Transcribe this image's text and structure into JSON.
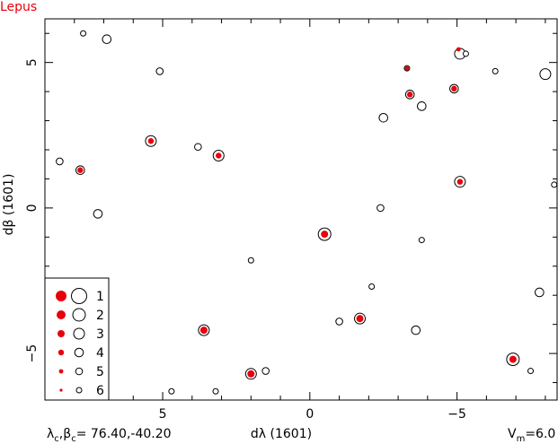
{
  "chart_data": {
    "type": "scatter",
    "title": "Lepus",
    "xlabel": "dλ (1601)",
    "ylabel": "dβ (1601)",
    "xlim": [
      9.0,
      -8.4
    ],
    "ylim": [
      -6.6,
      6.5
    ],
    "x_ticks": [
      5,
      0,
      -5
    ],
    "x_tick_labels": [
      "5",
      "0",
      "−5"
    ],
    "y_ticks": [
      5,
      0,
      -5
    ],
    "y_tick_labels": [
      "5",
      "0",
      "−5"
    ],
    "center_label": "λc,βc= 76.40,-40.20",
    "center_parts": {
      "lambda": "λ",
      "beta": "β",
      "sub": "c",
      "eq": "= ",
      "value": "76.40,-40.20",
      "comma": ","
    },
    "vm_label": "Vm=6.0",
    "vm_parts": {
      "main": "V",
      "sub": "m",
      "value": "=6.0"
    },
    "colors": {
      "filled": "#e8000b",
      "outline": "#000000",
      "title": "#e8000b"
    },
    "legend": {
      "placement": "bottom-left",
      "entries": [
        {
          "label": "1",
          "mag": 1
        },
        {
          "label": "2",
          "mag": 2
        },
        {
          "label": "3",
          "mag": 3
        },
        {
          "label": "4",
          "mag": 4
        },
        {
          "label": "5",
          "mag": 5
        },
        {
          "label": "6",
          "mag": 6
        }
      ]
    },
    "series": [
      {
        "kind": "catalog-outline",
        "points": [
          {
            "x": 7.7,
            "y": 6.0,
            "mag": 6
          },
          {
            "x": 6.9,
            "y": 5.8,
            "mag": 4
          },
          {
            "x": 5.1,
            "y": 4.7,
            "mag": 5
          },
          {
            "x": 8.5,
            "y": 1.6,
            "mag": 5
          },
          {
            "x": 7.2,
            "y": -0.2,
            "mag": 4
          },
          {
            "x": 5.4,
            "y": 2.3,
            "mag": 3
          },
          {
            "x": 3.8,
            "y": 2.1,
            "mag": 5
          },
          {
            "x": 3.1,
            "y": 1.8,
            "mag": 3
          },
          {
            "x": 7.8,
            "y": 1.3,
            "mag": 4
          },
          {
            "x": 3.6,
            "y": -4.2,
            "mag": 3
          },
          {
            "x": 2.0,
            "y": -1.8,
            "mag": 6
          },
          {
            "x": 2.0,
            "y": -5.7,
            "mag": 3
          },
          {
            "x": 1.5,
            "y": -5.6,
            "mag": 5
          },
          {
            "x": 4.7,
            "y": -6.3,
            "mag": 6
          },
          {
            "x": 3.2,
            "y": -6.3,
            "mag": 6
          },
          {
            "x": -0.5,
            "y": -0.9,
            "mag": 2
          },
          {
            "x": -1.0,
            "y": -3.9,
            "mag": 5
          },
          {
            "x": -1.7,
            "y": -3.8,
            "mag": 3
          },
          {
            "x": -2.1,
            "y": -2.7,
            "mag": 6
          },
          {
            "x": -2.4,
            "y": 0.0,
            "mag": 5
          },
          {
            "x": -2.5,
            "y": 3.1,
            "mag": 4
          },
          {
            "x": -3.3,
            "y": 4.8,
            "mag": 6
          },
          {
            "x": -3.4,
            "y": 3.9,
            "mag": 4
          },
          {
            "x": -3.6,
            "y": -4.2,
            "mag": 4
          },
          {
            "x": -3.8,
            "y": -1.1,
            "mag": 6
          },
          {
            "x": -3.8,
            "y": 3.5,
            "mag": 4
          },
          {
            "x": -4.9,
            "y": 4.1,
            "mag": 4
          },
          {
            "x": -5.1,
            "y": 5.3,
            "mag": 3
          },
          {
            "x": -5.3,
            "y": 5.3,
            "mag": 6
          },
          {
            "x": -5.1,
            "y": 0.9,
            "mag": 3
          },
          {
            "x": -6.3,
            "y": 4.7,
            "mag": 6
          },
          {
            "x": -6.9,
            "y": -5.2,
            "mag": 2
          },
          {
            "x": -7.5,
            "y": -5.6,
            "mag": 6
          },
          {
            "x": -7.8,
            "y": -2.9,
            "mag": 4
          },
          {
            "x": -8.0,
            "y": 4.6,
            "mag": 3
          },
          {
            "x": -8.3,
            "y": 0.8,
            "mag": 6
          }
        ]
      },
      {
        "kind": "filled",
        "points": [
          {
            "x": 5.4,
            "y": 2.3,
            "mag": 4
          },
          {
            "x": 3.1,
            "y": 1.8,
            "mag": 4
          },
          {
            "x": 7.8,
            "y": 1.3,
            "mag": 4
          },
          {
            "x": 3.6,
            "y": -4.2,
            "mag": 3
          },
          {
            "x": 2.0,
            "y": -5.7,
            "mag": 3
          },
          {
            "x": -0.5,
            "y": -0.9,
            "mag": 3
          },
          {
            "x": -1.7,
            "y": -3.8,
            "mag": 3
          },
          {
            "x": -3.3,
            "y": 4.8,
            "mag": 5
          },
          {
            "x": -3.4,
            "y": 3.9,
            "mag": 4
          },
          {
            "x": -4.9,
            "y": 4.1,
            "mag": 4
          },
          {
            "x": -5.05,
            "y": 5.45,
            "mag": 5
          },
          {
            "x": -5.1,
            "y": 0.9,
            "mag": 4
          },
          {
            "x": -6.9,
            "y": -5.2,
            "mag": 3
          }
        ]
      }
    ]
  }
}
